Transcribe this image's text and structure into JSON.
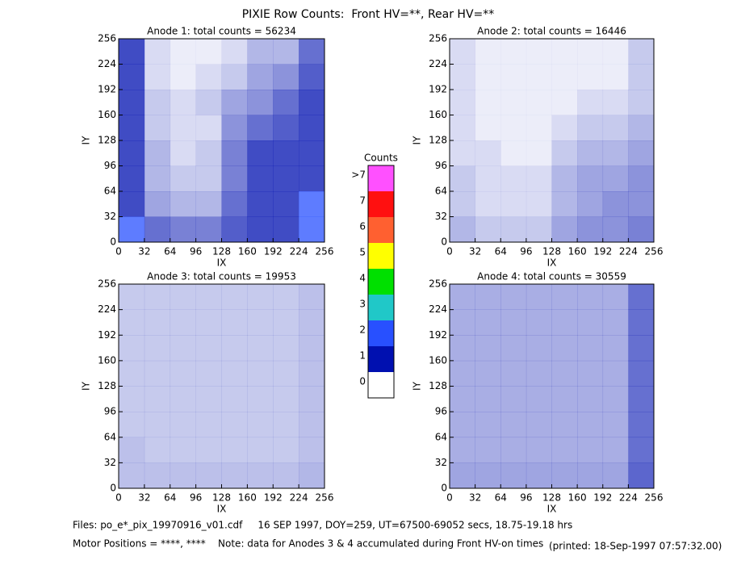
{
  "title": "PIXIE Row Counts:  Front HV=**, Rear HV=**",
  "colorbar": {
    "title": "Counts",
    "labels": [
      "0",
      "1",
      "2",
      "3",
      "4",
      "5",
      "6",
      "7",
      ">7"
    ],
    "colors": [
      "#ffffff",
      "#0010b0",
      "#2850ff",
      "#20c8c8",
      "#00e000",
      "#ffff00",
      "#ff6030",
      "#ff1010",
      "#ff50ff"
    ]
  },
  "footer": [
    "Files: po_e*_pix_19970916_v01.cdf     16 SEP 1997, DOY=259, UT=67500-69052 secs, 18.75-19.18 hrs",
    "Motor Positions = ****, ****    Note: data for Anodes 3 & 4 accumulated during Front HV-on times",
    "(printed: 18-Sep-1997 07:57:32.00)"
  ],
  "chart_data": [
    {
      "type": "heatmap",
      "title": "Anode 1: total counts = 56234",
      "xlabel": "IX",
      "ylabel": "IY",
      "xlim": [
        0,
        256
      ],
      "ylim": [
        0,
        256
      ],
      "xticks": [
        0,
        32,
        64,
        96,
        128,
        160,
        192,
        224,
        256
      ],
      "yticks": [
        0,
        32,
        64,
        96,
        128,
        160,
        192,
        224,
        256
      ],
      "grid": [
        [
          1.2,
          0.2,
          0.1,
          0.1,
          0.2,
          0.4,
          0.4,
          0.8
        ],
        [
          1.0,
          0.2,
          0.1,
          0.2,
          0.3,
          0.5,
          0.6,
          0.9
        ],
        [
          1.0,
          0.3,
          0.2,
          0.3,
          0.5,
          0.6,
          0.8,
          1.0
        ],
        [
          1.0,
          0.3,
          0.2,
          0.2,
          0.6,
          0.8,
          0.9,
          1.1
        ],
        [
          1.1,
          0.4,
          0.2,
          0.3,
          0.7,
          1.0,
          1.1,
          1.3
        ],
        [
          1.3,
          0.4,
          0.3,
          0.3,
          0.7,
          1.0,
          1.2,
          1.4
        ],
        [
          1.4,
          0.5,
          0.4,
          0.4,
          0.8,
          1.1,
          1.3,
          1.5
        ],
        [
          1.6,
          0.8,
          0.7,
          0.7,
          0.9,
          1.2,
          1.4,
          1.6
        ]
      ]
    },
    {
      "type": "heatmap",
      "title": "Anode 2: total counts = 16446",
      "xlabel": "IX",
      "ylabel": "IY",
      "xlim": [
        0,
        256
      ],
      "ylim": [
        0,
        256
      ],
      "xticks": [
        0,
        32,
        64,
        96,
        128,
        160,
        192,
        224,
        256
      ],
      "yticks": [
        0,
        32,
        64,
        96,
        128,
        160,
        192,
        224,
        256
      ],
      "grid": [
        [
          0.2,
          0.1,
          0.1,
          0.1,
          0.1,
          0.1,
          0.1,
          0.3
        ],
        [
          0.2,
          0.1,
          0.1,
          0.1,
          0.1,
          0.1,
          0.1,
          0.3
        ],
        [
          0.2,
          0.1,
          0.1,
          0.1,
          0.1,
          0.2,
          0.2,
          0.3
        ],
        [
          0.2,
          0.1,
          0.1,
          0.1,
          0.2,
          0.3,
          0.3,
          0.4
        ],
        [
          0.2,
          0.2,
          0.1,
          0.1,
          0.3,
          0.4,
          0.4,
          0.5
        ],
        [
          0.3,
          0.2,
          0.2,
          0.2,
          0.4,
          0.5,
          0.5,
          0.6
        ],
        [
          0.3,
          0.2,
          0.2,
          0.2,
          0.4,
          0.5,
          0.6,
          0.6
        ],
        [
          0.4,
          0.3,
          0.3,
          0.3,
          0.5,
          0.6,
          0.6,
          0.7
        ]
      ]
    },
    {
      "type": "heatmap",
      "title": "Anode 3: total counts = 19953",
      "xlabel": "IX",
      "ylabel": "IY",
      "xlim": [
        0,
        256
      ],
      "ylim": [
        0,
        256
      ],
      "xticks": [
        0,
        32,
        64,
        96,
        128,
        160,
        192,
        224,
        256
      ],
      "yticks": [
        0,
        32,
        64,
        96,
        128,
        160,
        192,
        224,
        256
      ],
      "grid": [
        [
          0.3,
          0.3,
          0.3,
          0.3,
          0.3,
          0.3,
          0.3,
          0.35
        ],
        [
          0.3,
          0.3,
          0.3,
          0.3,
          0.3,
          0.3,
          0.3,
          0.35
        ],
        [
          0.3,
          0.3,
          0.3,
          0.3,
          0.3,
          0.3,
          0.3,
          0.35
        ],
        [
          0.3,
          0.3,
          0.3,
          0.3,
          0.3,
          0.3,
          0.3,
          0.35
        ],
        [
          0.3,
          0.3,
          0.3,
          0.3,
          0.3,
          0.3,
          0.3,
          0.35
        ],
        [
          0.3,
          0.3,
          0.3,
          0.3,
          0.3,
          0.3,
          0.3,
          0.35
        ],
        [
          0.35,
          0.3,
          0.3,
          0.3,
          0.3,
          0.3,
          0.3,
          0.35
        ],
        [
          0.35,
          0.35,
          0.35,
          0.35,
          0.35,
          0.35,
          0.35,
          0.4
        ]
      ]
    },
    {
      "type": "heatmap",
      "title": "Anode 4: total counts = 30559",
      "xlabel": "IX",
      "ylabel": "IY",
      "xlim": [
        0,
        256
      ],
      "ylim": [
        0,
        256
      ],
      "xticks": [
        0,
        32,
        64,
        96,
        128,
        160,
        192,
        224,
        256
      ],
      "yticks": [
        0,
        32,
        64,
        96,
        128,
        160,
        192,
        224,
        256
      ],
      "grid": [
        [
          0.45,
          0.45,
          0.45,
          0.45,
          0.45,
          0.45,
          0.45,
          0.8
        ],
        [
          0.45,
          0.45,
          0.45,
          0.45,
          0.45,
          0.45,
          0.45,
          0.8
        ],
        [
          0.45,
          0.45,
          0.45,
          0.45,
          0.45,
          0.45,
          0.45,
          0.8
        ],
        [
          0.45,
          0.45,
          0.45,
          0.45,
          0.45,
          0.45,
          0.45,
          0.8
        ],
        [
          0.45,
          0.45,
          0.45,
          0.45,
          0.45,
          0.45,
          0.45,
          0.8
        ],
        [
          0.45,
          0.45,
          0.45,
          0.45,
          0.45,
          0.45,
          0.45,
          0.8
        ],
        [
          0.45,
          0.45,
          0.45,
          0.45,
          0.45,
          0.45,
          0.45,
          0.8
        ],
        [
          0.5,
          0.5,
          0.5,
          0.5,
          0.5,
          0.5,
          0.5,
          0.85
        ]
      ]
    }
  ]
}
